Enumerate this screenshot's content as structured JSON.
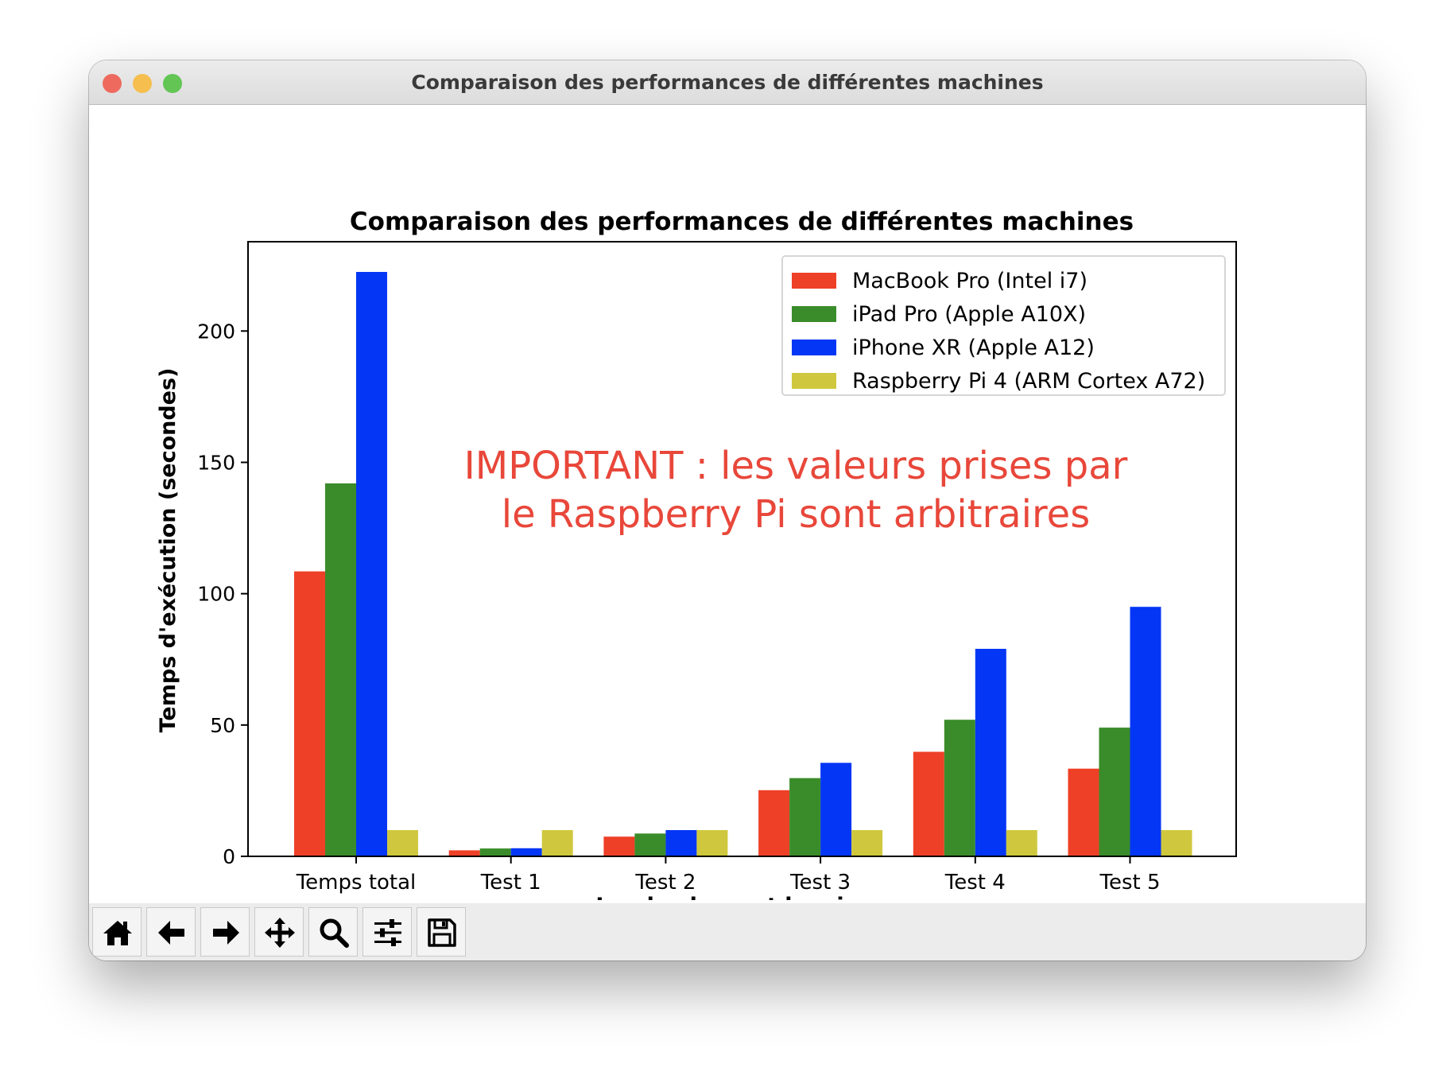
{
  "window": {
    "title": "Comparaison des performances de différentes machines",
    "traffic_lights": {
      "close": "#ee6a5f",
      "minimize": "#f5be4f",
      "zoom": "#62c554"
    }
  },
  "toolbar": {
    "buttons": [
      {
        "name": "home",
        "icon": "home-icon"
      },
      {
        "name": "back",
        "icon": "arrow-left-icon"
      },
      {
        "name": "forward",
        "icon": "arrow-right-icon"
      },
      {
        "name": "pan",
        "icon": "move-icon"
      },
      {
        "name": "zoom",
        "icon": "magnifier-icon"
      },
      {
        "name": "configure-subplots",
        "icon": "sliders-icon"
      },
      {
        "name": "save",
        "icon": "floppy-disk-icon"
      }
    ]
  },
  "chart_data": {
    "type": "bar",
    "title": "Comparaison des performances de différentes machines",
    "xlabel": "Le plus bas est le mieux",
    "ylabel": "Temps d'exécution (secondes)",
    "categories": [
      "Temps total",
      "Test 1",
      "Test 2",
      "Test 3",
      "Test 4",
      "Test 5"
    ],
    "series": [
      {
        "name": "MacBook Pro (Intel i7)",
        "color": "#ee4027",
        "values": [
          108.5,
          2.3,
          7.5,
          25.2,
          39.8,
          33.4
        ]
      },
      {
        "name": "iPad Pro (Apple A10X)",
        "color": "#3a8c2a",
        "values": [
          142,
          3,
          8.7,
          29.8,
          52,
          49
        ]
      },
      {
        "name": "iPhone XR (Apple A12)",
        "color": "#0436f5",
        "values": [
          222.5,
          3.1,
          10,
          35.6,
          79,
          95
        ]
      },
      {
        "name": "Raspberry Pi 4 (ARM Cortex A72)",
        "color": "#cfc83e",
        "values": [
          10,
          10,
          10,
          10,
          10,
          10
        ]
      }
    ],
    "ylim": [
      0,
      234
    ],
    "yticks": [
      0,
      50,
      100,
      150,
      200
    ],
    "legend_position": "top-right",
    "grid": false,
    "annotation": {
      "lines": [
        "IMPORTANT :  les valeurs prises par",
        "le Raspberry Pi sont arbitraires"
      ],
      "color": "#e8473a"
    }
  }
}
